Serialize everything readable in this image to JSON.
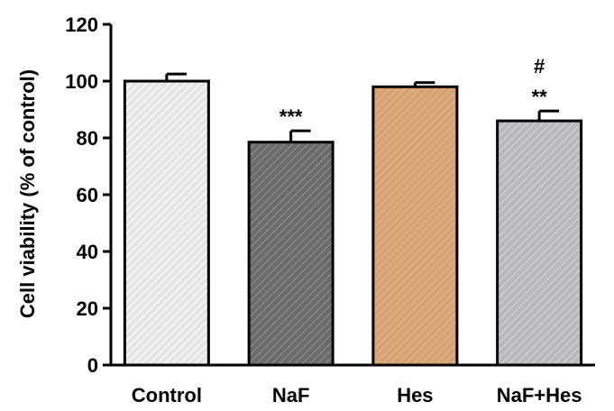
{
  "chart_data": {
    "type": "bar",
    "title": "",
    "xlabel": "",
    "ylabel": "Cell viability (% of control)",
    "ylim": [
      0,
      120
    ],
    "yticks": [
      0,
      20,
      40,
      60,
      80,
      100,
      120
    ],
    "grid": false,
    "legend": "none",
    "categories": [
      "Control",
      "NaF",
      "Hes",
      "NaF+Hes"
    ],
    "values": [
      100,
      78.5,
      98,
      86
    ],
    "errors": [
      2.5,
      4,
      1.5,
      3.5
    ],
    "annotations": [
      "",
      "***",
      "",
      "**"
    ],
    "annotations_top": [
      "",
      "",
      "",
      "#"
    ],
    "bar_fills": [
      "#e6e6e6",
      "#6b6b6b",
      "#d9a97c",
      "#b9b9bd"
    ],
    "pattern_colors": [
      "#ffffff",
      "#8f8f8f",
      "#c99666",
      "#d6d6d8"
    ]
  }
}
